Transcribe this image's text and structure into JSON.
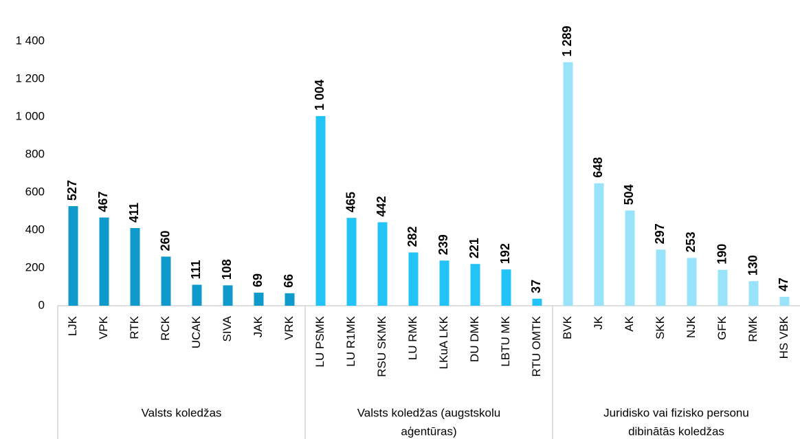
{
  "chart_data": {
    "type": "bar",
    "groups": [
      {
        "name": [
          "Valsts koledžas"
        ],
        "color": "#0f9acb",
        "categories": [
          "LJK",
          "VPK",
          "RTK",
          "RCK",
          "UCAK",
          "SIVA",
          "JAK",
          "VRK"
        ],
        "values": [
          527,
          467,
          411,
          260,
          111,
          108,
          69,
          66
        ]
      },
      {
        "name": [
          "Valsts koledžas (augstskolu",
          "aģentūras)"
        ],
        "color": "#22c3f6",
        "categories": [
          "LU PSMK",
          "LU R1MK",
          "RSU SKMK",
          "LU RMK",
          "LKuA LKK",
          "DU DMK",
          "LBTU MK",
          "RTU OMTK"
        ],
        "values": [
          1004,
          465,
          442,
          282,
          239,
          221,
          192,
          37
        ],
        "value_labels": [
          "1 004",
          "465",
          "442",
          "282",
          "239",
          "221",
          "192",
          "37"
        ]
      },
      {
        "name": [
          "Juridisko vai fizisko personu",
          "dibinātās koledžas"
        ],
        "color": "#98e2fa",
        "categories": [
          "BVK",
          "JK",
          "AK",
          "SKK",
          "NJK",
          "GFK",
          "RMK",
          "HS VBK"
        ],
        "values": [
          1289,
          648,
          504,
          297,
          253,
          190,
          130,
          47
        ],
        "value_labels": [
          "1 289",
          "648",
          "504",
          "297",
          "253",
          "190",
          "130",
          "47"
        ]
      }
    ],
    "ylim": [
      0,
      1400
    ],
    "yticks": [
      0,
      200,
      400,
      600,
      800,
      {
        "value": 1000,
        "label": "1 000"
      },
      {
        "value": 1200,
        "label": "1 200"
      },
      {
        "value": 1400,
        "label": "1 400"
      }
    ],
    "grid": false
  }
}
